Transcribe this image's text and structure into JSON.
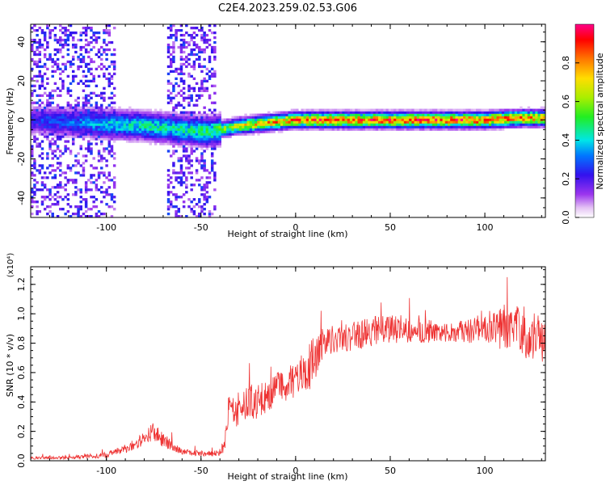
{
  "figure": {
    "title": "C2E4.2023.259.02.53.G06"
  },
  "chart_data": [
    {
      "type": "heatmap",
      "title": "C2E4.2023.259.02.53.G06",
      "xlabel": "Height of straight line (km)",
      "ylabel": "Frequency (Hz)",
      "xlim": [
        -140,
        132
      ],
      "ylim": [
        -50,
        49
      ],
      "xticks": [
        -100,
        -50,
        0,
        50,
        100
      ],
      "xtick_labels": [
        "-100",
        "-50",
        "0",
        "50",
        "100"
      ],
      "yticks": [
        -40,
        -20,
        0,
        20,
        40
      ],
      "ytick_labels": [
        "-40",
        "-20",
        "0",
        "20",
        "40"
      ],
      "ridge": {
        "x": [
          -140,
          -120,
          -100,
          -80,
          -60,
          -45,
          -40,
          -30,
          -20,
          -10,
          0,
          20,
          50,
          80,
          100,
          120,
          132
        ],
        "y": [
          0,
          -1,
          -2,
          -3,
          -5,
          -6,
          -5,
          -3,
          -2,
          -1,
          0,
          0,
          0,
          0,
          0,
          1,
          1
        ],
        "peak_amplitude": [
          0.25,
          0.3,
          0.4,
          0.45,
          0.45,
          0.5,
          0.55,
          0.7,
          0.75,
          0.8,
          0.85,
          0.88,
          0.9,
          0.9,
          0.88,
          0.85,
          0.8
        ]
      },
      "colorbar": {
        "label": "Normalized spectral amplitude",
        "min": 0.0,
        "max": 1.0,
        "ticks": [
          0.0,
          0.2,
          0.4,
          0.6,
          0.8
        ],
        "tick_labels": [
          "0.0",
          "0.2",
          "0.4",
          "0.6",
          "0.8"
        ],
        "colormap": "rainbow"
      },
      "grid": false
    },
    {
      "type": "line",
      "xlabel": "Height of straight line (km)",
      "ylabel": "SNR (10 * v/v)",
      "scale_note": "(x10⁴)",
      "xlim": [
        -140,
        132
      ],
      "ylim": [
        0,
        1.32
      ],
      "xticks": [
        -100,
        -50,
        0,
        50,
        100
      ],
      "xtick_labels": [
        "-100",
        "-50",
        "0",
        "50",
        "100"
      ],
      "yticks": [
        0.0,
        0.2,
        0.4,
        0.6,
        0.8,
        1.0,
        1.2
      ],
      "ytick_labels": [
        "0.0",
        "0.2",
        "0.4",
        "0.6",
        "0.8",
        "1.0",
        "1.2"
      ],
      "series": [
        {
          "color": "#ee3333",
          "x": [
            -140,
            -120,
            -100,
            -90,
            -80,
            -75,
            -70,
            -60,
            -50,
            -40,
            -38,
            -35,
            -30,
            -25,
            -20,
            -10,
            0,
            5,
            10,
            15,
            20,
            30,
            40,
            50,
            60,
            70,
            80,
            90,
            100,
            110,
            120,
            132
          ],
          "y": [
            0.02,
            0.02,
            0.04,
            0.08,
            0.15,
            0.2,
            0.14,
            0.06,
            0.05,
            0.05,
            0.1,
            0.3,
            0.35,
            0.4,
            0.4,
            0.5,
            0.55,
            0.6,
            0.7,
            0.8,
            0.82,
            0.85,
            0.88,
            0.9,
            0.9,
            0.88,
            0.87,
            0.88,
            0.9,
            0.9,
            0.88,
            0.82
          ],
          "noise_amplitude": [
            0.01,
            0.01,
            0.02,
            0.03,
            0.05,
            0.06,
            0.05,
            0.02,
            0.02,
            0.02,
            0.06,
            0.1,
            0.12,
            0.12,
            0.12,
            0.12,
            0.12,
            0.15,
            0.18,
            0.12,
            0.1,
            0.1,
            0.1,
            0.1,
            0.1,
            0.08,
            0.06,
            0.08,
            0.1,
            0.15,
            0.18,
            0.15
          ]
        }
      ],
      "grid": false
    }
  ]
}
